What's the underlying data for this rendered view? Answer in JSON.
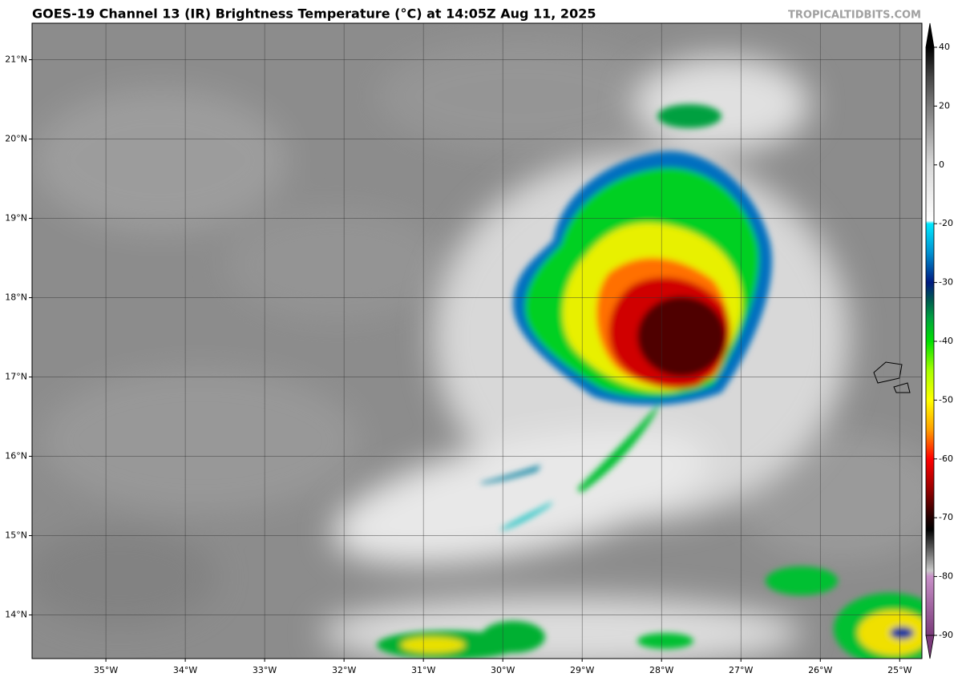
{
  "map": {
    "title": "GOES-19 Channel 13 (IR) Brightness Temperature (°C) at 14:05Z Aug 11, 2025",
    "credit": "TROPICALTIDBITS.COM",
    "xlim": [
      -35.93,
      -24.72
    ],
    "ylim": [
      13.45,
      21.46
    ],
    "xticks": [
      {
        "value": -35,
        "label": "35°W"
      },
      {
        "value": -34,
        "label": "34°W"
      },
      {
        "value": -33,
        "label": "33°W"
      },
      {
        "value": -32,
        "label": "32°W"
      },
      {
        "value": -31,
        "label": "31°W"
      },
      {
        "value": -30,
        "label": "30°W"
      },
      {
        "value": -29,
        "label": "29°W"
      },
      {
        "value": -28,
        "label": "28°W"
      },
      {
        "value": -27,
        "label": "27°W"
      },
      {
        "value": -26,
        "label": "26°W"
      },
      {
        "value": -25,
        "label": "25°W"
      }
    ],
    "yticks": [
      {
        "value": 14,
        "label": "14°N"
      },
      {
        "value": 15,
        "label": "15°N"
      },
      {
        "value": 16,
        "label": "16°N"
      },
      {
        "value": 17,
        "label": "17°N"
      },
      {
        "value": 18,
        "label": "18°N"
      },
      {
        "value": 19,
        "label": "19°N"
      },
      {
        "value": 20,
        "label": "20°N"
      },
      {
        "value": 21,
        "label": "21°N"
      }
    ],
    "colorbar": {
      "ticks": [
        40,
        20,
        0,
        -20,
        -30,
        -40,
        -50,
        -60,
        -70,
        -80,
        -90
      ],
      "colormap": [
        {
          "value": 40,
          "color": "#000000"
        },
        {
          "value": 30,
          "color": "#444444"
        },
        {
          "value": 20,
          "color": "#7a7a7a"
        },
        {
          "value": 0,
          "color": "#d8d8d8"
        },
        {
          "value": -19,
          "color": "#ffffff"
        },
        {
          "value": -20,
          "color": "#00e8ff"
        },
        {
          "value": -25,
          "color": "#0090d0"
        },
        {
          "value": -30,
          "color": "#001a80"
        },
        {
          "value": -33,
          "color": "#005a50"
        },
        {
          "value": -36,
          "color": "#00a040"
        },
        {
          "value": -40,
          "color": "#00e000"
        },
        {
          "value": -45,
          "color": "#a8ff00"
        },
        {
          "value": -50,
          "color": "#ffff00"
        },
        {
          "value": -55,
          "color": "#ffa000"
        },
        {
          "value": -60,
          "color": "#ff0000"
        },
        {
          "value": -65,
          "color": "#9a0000"
        },
        {
          "value": -70,
          "color": "#200000"
        },
        {
          "value": -72,
          "color": "#000000"
        },
        {
          "value": -76,
          "color": "#707070"
        },
        {
          "value": -79,
          "color": "#c8c8c8"
        },
        {
          "value": -80,
          "color": "#c890c8"
        },
        {
          "value": -90,
          "color": "#7a3a7a"
        }
      ]
    }
  }
}
